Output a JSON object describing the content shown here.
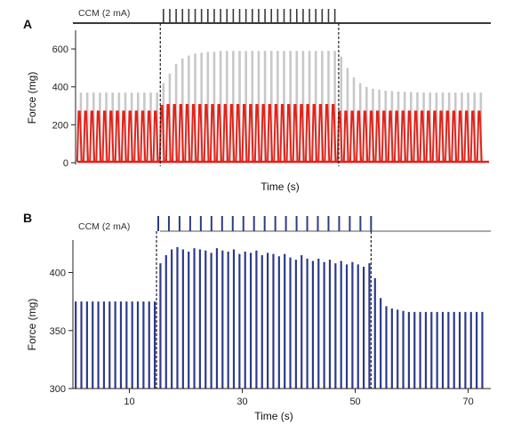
{
  "colors": {
    "panel_a_stim": "#3a3a3a",
    "panel_a_grey": "#c8c8c8",
    "panel_a_red": "#e2231a",
    "panel_a_baseline_red": "#e2231a",
    "panel_b": "#2e3a8c",
    "axis": "#222222",
    "dashed": "#111111"
  },
  "chart_data": [
    {
      "panel": "A",
      "type": "line",
      "stimulus_label": "CCM (2 mA)",
      "xlabel": "Time (s)",
      "ylabel": "Force (mg)",
      "ylim": [
        0,
        680
      ],
      "yticks": [
        0,
        200,
        400,
        600
      ],
      "stim_on_index": 13,
      "stim_off_index": 41,
      "n_twitches": 64,
      "series": [
        {
          "values": [
            370,
            370,
            370,
            370,
            370,
            370,
            370,
            370,
            370,
            370,
            370,
            370,
            370,
            420,
            470,
            520,
            550,
            565,
            575,
            580,
            585,
            585,
            590,
            590,
            590,
            590,
            590,
            590,
            590,
            590,
            590,
            590,
            590,
            590,
            590,
            590,
            590,
            590,
            590,
            590,
            590,
            560,
            500,
            450,
            420,
            400,
            390,
            385,
            380,
            378,
            375,
            374,
            372,
            371,
            370,
            370,
            370,
            370,
            370,
            370,
            370,
            370,
            370,
            370,
            370
          ]
        },
        {
          "values": [
            270,
            270,
            270,
            270,
            270,
            270,
            270,
            270,
            270,
            270,
            270,
            270,
            270,
            300,
            305,
            305,
            305,
            305,
            305,
            305,
            305,
            305,
            305,
            305,
            305,
            305,
            305,
            305,
            305,
            305,
            305,
            305,
            305,
            305,
            305,
            305,
            305,
            305,
            305,
            305,
            305,
            270,
            270,
            270,
            270,
            270,
            270,
            270,
            270,
            270,
            270,
            270,
            270,
            270,
            270,
            270,
            270,
            270,
            270,
            270,
            270,
            270,
            270,
            270,
            270
          ]
        }
      ]
    },
    {
      "panel": "B",
      "type": "line",
      "stimulus_label": "CCM (2 mA)",
      "xlabel": "Time (s)",
      "ylabel": "Force (mg)",
      "xlim": [
        0,
        74
      ],
      "ylim": [
        300,
        428
      ],
      "xticks": [
        10,
        30,
        50,
        70
      ],
      "yticks": [
        300,
        350,
        400
      ],
      "stim_on_x": 14.8,
      "stim_off_x": 52.8,
      "stim_pulses": 21,
      "series": [
        {
          "x": [
            0.5,
            1.5,
            2.5,
            3.5,
            4.5,
            5.5,
            6.5,
            7.5,
            8.5,
            9.5,
            10.5,
            11.5,
            12.5,
            13.5,
            14.5,
            15.5,
            16.5,
            17.5,
            18.5,
            19.5,
            20.5,
            21.5,
            22.5,
            23.5,
            24.5,
            25.5,
            26.5,
            27.5,
            28.5,
            29.5,
            30.5,
            31.5,
            32.5,
            33.5,
            34.5,
            35.5,
            36.5,
            37.5,
            38.5,
            39.5,
            40.5,
            41.5,
            42.5,
            43.5,
            44.5,
            45.5,
            46.5,
            47.5,
            48.5,
            49.5,
            50.5,
            51.5,
            52.5,
            53.5,
            54.5,
            55.5,
            56.5,
            57.5,
            58.5,
            59.5,
            60.5,
            61.5,
            62.5,
            63.5,
            64.5,
            65.5,
            66.5,
            67.5,
            68.5,
            69.5,
            70.5,
            71.5,
            72.5
          ],
          "values": [
            375,
            375,
            375,
            375,
            375,
            375,
            375,
            375,
            375,
            375,
            375,
            375,
            375,
            375,
            375,
            408,
            415,
            420,
            422,
            420,
            418,
            421,
            420,
            419,
            417,
            421,
            419,
            418,
            420,
            416,
            418,
            417,
            419,
            415,
            417,
            416,
            414,
            416,
            413,
            411,
            415,
            412,
            410,
            412,
            409,
            411,
            408,
            410,
            407,
            409,
            407,
            405,
            408,
            395,
            378,
            371,
            369,
            368,
            367,
            366,
            366,
            366,
            366,
            366,
            366,
            366,
            366,
            366,
            366,
            366,
            366,
            366,
            366
          ]
        }
      ]
    }
  ]
}
